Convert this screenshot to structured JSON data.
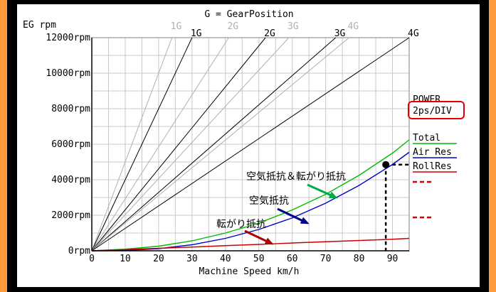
{
  "chart_data": {
    "type": "line",
    "title": "G = GearPosition",
    "ylabel": "EG rpm",
    "xlabel": "Machine Speed km/h",
    "xlim": [
      0,
      95
    ],
    "ylim": [
      0,
      12000
    ],
    "x_ticks": [
      0,
      10,
      20,
      30,
      40,
      50,
      60,
      70,
      80,
      90
    ],
    "y_ticks": [
      {
        "value": 0,
        "label": "0rpm"
      },
      {
        "value": 2000,
        "label": "2000rpm"
      },
      {
        "value": 4000,
        "label": "4000rpm"
      },
      {
        "value": 6000,
        "label": "6000rpm"
      },
      {
        "value": 8000,
        "label": "8000rpm"
      },
      {
        "value": 10000,
        "label": "10000rpm"
      },
      {
        "value": 12000,
        "label": "12000rpm"
      }
    ],
    "grid": true,
    "gear_lines": [
      {
        "label": "1G",
        "speed_at_12000": 24,
        "color": "#b0b0b0"
      },
      {
        "label": "1G",
        "speed_at_12000": 30,
        "color": "#000000"
      },
      {
        "label": "2G",
        "speed_at_12000": 41,
        "color": "#b0b0b0"
      },
      {
        "label": "2G",
        "speed_at_12000": 52,
        "color": "#000000"
      },
      {
        "label": "3G",
        "speed_at_12000": 59,
        "color": "#b0b0b0"
      },
      {
        "label": "3G",
        "speed_at_12000": 73,
        "color": "#000000"
      },
      {
        "label": "4G",
        "speed_at_12000": 77,
        "color": "#b0b0b0"
      },
      {
        "label": "4G",
        "speed_at_12000": 95,
        "color": "#000000"
      }
    ],
    "series": [
      {
        "name": "Total",
        "color": "#00bb00",
        "x": [
          0,
          10,
          20,
          30,
          40,
          50,
          60,
          70,
          80,
          90,
          95
        ],
        "y": [
          0,
          90,
          260,
          560,
          1000,
          1560,
          2300,
          3180,
          4250,
          5500,
          6250
        ]
      },
      {
        "name": "Air Res",
        "color": "#0000cc",
        "x": [
          0,
          10,
          20,
          30,
          40,
          50,
          60,
          70,
          80,
          90,
          95
        ],
        "y": [
          0,
          20,
          120,
          340,
          700,
          1200,
          1850,
          2680,
          3680,
          4860,
          5550
        ]
      },
      {
        "name": "RollRes",
        "color": "#cc0000",
        "x": [
          0,
          10,
          20,
          30,
          40,
          50,
          60,
          70,
          80,
          90,
          95
        ],
        "y": [
          0,
          70,
          140,
          210,
          290,
          360,
          440,
          510,
          580,
          650,
          700
        ]
      }
    ],
    "power_label": "POWER",
    "power_scale": "2ps/DIV",
    "marker": {
      "x": 88,
      "y": 4850
    },
    "annotations": [
      {
        "text": "空気抵抗＆転がり抵抗",
        "color": "#00aa44"
      },
      {
        "text": "空気抵抗",
        "color": "#000088"
      },
      {
        "text": "転がり抵抗",
        "color": "#aa0000"
      }
    ],
    "legend_placement": "right",
    "accent_colors": {
      "frame": "#ff9a3c",
      "power_box": "#e00000"
    }
  }
}
